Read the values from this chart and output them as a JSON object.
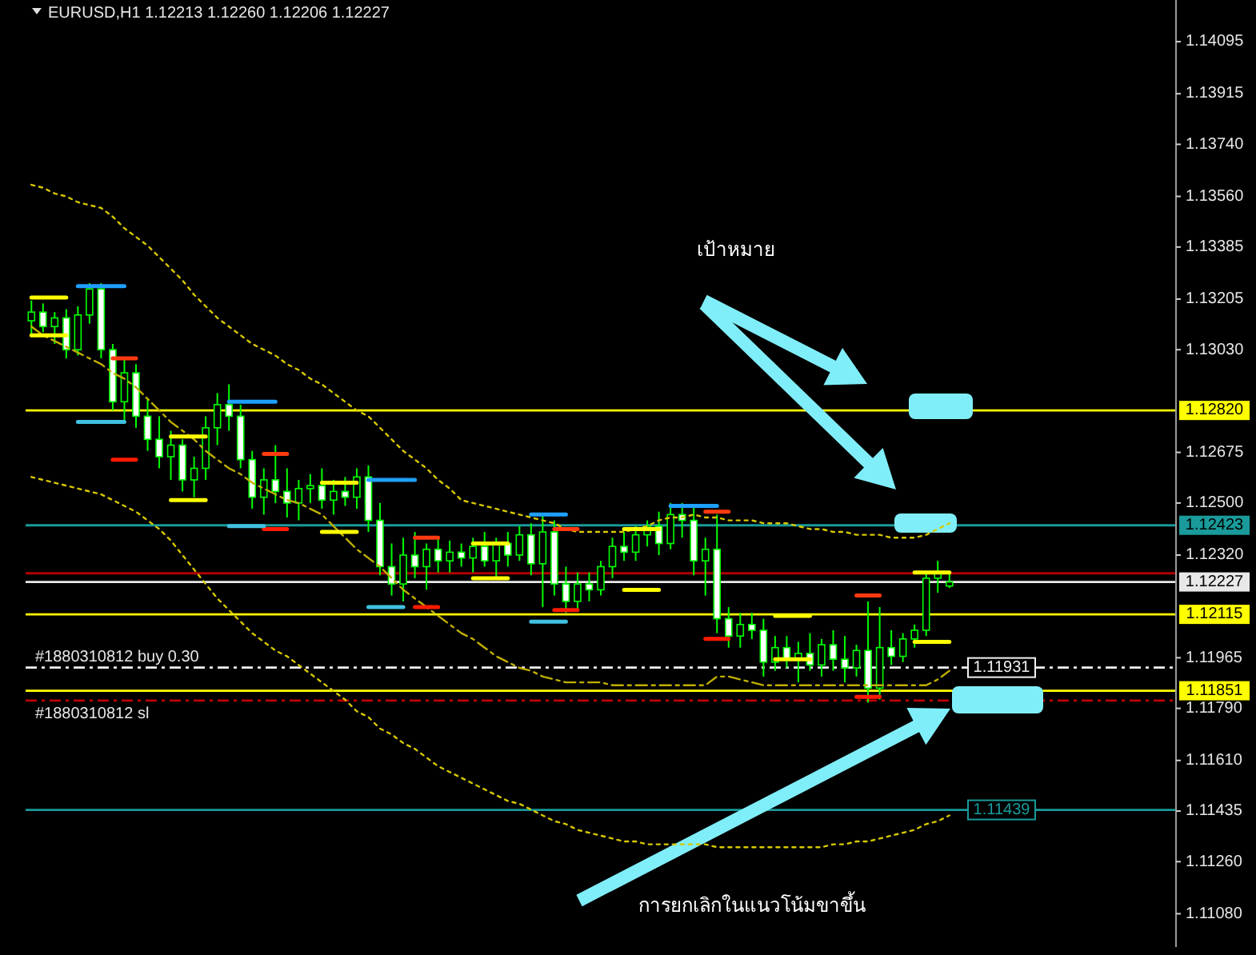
{
  "chart_data": {
    "type": "candlestick",
    "title": "EURUSD,H1  1.12213 1.12260 1.12206 1.12227",
    "categories": [
      null,
      null,
      null,
      null,
      null,
      null,
      null,
      null,
      null,
      null,
      null,
      null,
      null,
      null,
      null,
      null,
      null,
      null,
      null,
      null,
      null,
      null,
      null,
      null,
      null,
      null,
      null,
      null,
      null,
      null,
      null,
      null,
      null,
      null,
      null,
      null,
      null,
      null,
      null,
      null,
      null,
      null,
      null,
      null,
      null,
      null,
      null,
      null,
      null,
      null,
      null,
      null,
      null,
      null,
      null,
      null,
      null,
      null,
      null,
      null,
      null,
      null,
      null,
      null,
      null,
      null,
      null,
      null,
      null,
      null,
      null,
      null,
      null,
      null,
      null,
      null,
      null,
      null,
      null,
      null,
      null,
      null,
      null,
      null,
      null,
      null,
      null,
      null,
      null,
      null,
      null,
      null,
      null,
      null,
      null,
      null,
      null,
      null,
      null
    ],
    "ohlc": [
      [
        1.1313,
        1.132,
        1.1308,
        1.1316
      ],
      [
        1.1316,
        1.1319,
        1.1309,
        1.1311
      ],
      [
        1.1311,
        1.1316,
        1.1305,
        1.1314
      ],
      [
        1.1314,
        1.1317,
        1.13,
        1.1303
      ],
      [
        1.1303,
        1.1318,
        1.1301,
        1.1315
      ],
      [
        1.1315,
        1.1326,
        1.1312,
        1.1324
      ],
      [
        1.1324,
        1.1326,
        1.13,
        1.1303
      ],
      [
        1.1303,
        1.1305,
        1.1282,
        1.1285
      ],
      [
        1.1285,
        1.13,
        1.1278,
        1.1295
      ],
      [
        1.1295,
        1.1298,
        1.1276,
        1.128
      ],
      [
        1.128,
        1.1286,
        1.1268,
        1.1272
      ],
      [
        1.1272,
        1.128,
        1.1262,
        1.1266
      ],
      [
        1.1266,
        1.1275,
        1.1258,
        1.127
      ],
      [
        1.127,
        1.1272,
        1.1254,
        1.1258
      ],
      [
        1.1258,
        1.1266,
        1.1252,
        1.1262
      ],
      [
        1.1262,
        1.128,
        1.1258,
        1.1276
      ],
      [
        1.1276,
        1.1288,
        1.127,
        1.1284
      ],
      [
        1.1284,
        1.1291,
        1.1275,
        1.128
      ],
      [
        1.128,
        1.1284,
        1.1262,
        1.1265
      ],
      [
        1.1265,
        1.1268,
        1.1248,
        1.1252
      ],
      [
        1.1252,
        1.1262,
        1.1246,
        1.1258
      ],
      [
        1.1258,
        1.127,
        1.125,
        1.1254
      ],
      [
        1.1254,
        1.1262,
        1.1245,
        1.125
      ],
      [
        1.125,
        1.1258,
        1.1244,
        1.1255
      ],
      [
        1.1255,
        1.126,
        1.125,
        1.1256
      ],
      [
        1.1256,
        1.1262,
        1.1248,
        1.1251
      ],
      [
        1.1251,
        1.1258,
        1.1246,
        1.1254
      ],
      [
        1.1254,
        1.1259,
        1.1249,
        1.1252
      ],
      [
        1.1252,
        1.1262,
        1.1248,
        1.1259
      ],
      [
        1.1259,
        1.1263,
        1.124,
        1.1244
      ],
      [
        1.1244,
        1.125,
        1.1225,
        1.1228
      ],
      [
        1.1228,
        1.1236,
        1.1218,
        1.1222
      ],
      [
        1.1222,
        1.1238,
        1.1216,
        1.1232
      ],
      [
        1.1232,
        1.124,
        1.1224,
        1.1228
      ],
      [
        1.1228,
        1.1236,
        1.122,
        1.1234
      ],
      [
        1.1234,
        1.1238,
        1.1226,
        1.123
      ],
      [
        1.123,
        1.1237,
        1.1226,
        1.1233
      ],
      [
        1.1233,
        1.1236,
        1.1228,
        1.1231
      ],
      [
        1.1231,
        1.1238,
        1.1226,
        1.1235
      ],
      [
        1.1235,
        1.124,
        1.1228,
        1.123
      ],
      [
        1.123,
        1.1238,
        1.1224,
        1.1236
      ],
      [
        1.1236,
        1.124,
        1.1228,
        1.1232
      ],
      [
        1.1232,
        1.1242,
        1.123,
        1.1239
      ],
      [
        1.1239,
        1.1243,
        1.1225,
        1.1229
      ],
      [
        1.1229,
        1.1246,
        1.1214,
        1.124
      ],
      [
        1.124,
        1.1244,
        1.1218,
        1.1222
      ],
      [
        1.1222,
        1.1228,
        1.1212,
        1.1216
      ],
      [
        1.1216,
        1.1226,
        1.1213,
        1.1222
      ],
      [
        1.1222,
        1.1226,
        1.1216,
        1.122
      ],
      [
        1.122,
        1.123,
        1.1218,
        1.1228
      ],
      [
        1.1228,
        1.1238,
        1.1224,
        1.1235
      ],
      [
        1.1235,
        1.124,
        1.123,
        1.1233
      ],
      [
        1.1233,
        1.1242,
        1.123,
        1.1239
      ],
      [
        1.1239,
        1.1244,
        1.1235,
        1.1242
      ],
      [
        1.1242,
        1.1247,
        1.1232,
        1.1236
      ],
      [
        1.1236,
        1.125,
        1.1234,
        1.1246
      ],
      [
        1.1246,
        1.125,
        1.1238,
        1.1244
      ],
      [
        1.1244,
        1.1249,
        1.1225,
        1.123
      ],
      [
        1.123,
        1.1238,
        1.1218,
        1.1234
      ],
      [
        1.1234,
        1.1246,
        1.1205,
        1.121
      ],
      [
        1.121,
        1.1214,
        1.12,
        1.1204
      ],
      [
        1.1204,
        1.1212,
        1.12,
        1.1208
      ],
      [
        1.1208,
        1.1212,
        1.1203,
        1.1206
      ],
      [
        1.1206,
        1.121,
        1.119,
        1.1195
      ],
      [
        1.1195,
        1.1204,
        1.1192,
        1.12
      ],
      [
        1.12,
        1.1204,
        1.1193,
        1.1196
      ],
      [
        1.1196,
        1.1202,
        1.1188,
        1.1198
      ],
      [
        1.1198,
        1.1205,
        1.1192,
        1.1194
      ],
      [
        1.1194,
        1.1203,
        1.119,
        1.1201
      ],
      [
        1.1201,
        1.1206,
        1.1192,
        1.1196
      ],
      [
        1.1196,
        1.1204,
        1.1188,
        1.1193
      ],
      [
        1.1193,
        1.1201,
        1.119,
        1.1199
      ],
      [
        1.1199,
        1.1216,
        1.1181,
        1.1186
      ],
      [
        1.1186,
        1.1214,
        1.1182,
        1.12
      ],
      [
        1.12,
        1.1206,
        1.1194,
        1.1197
      ],
      [
        1.1197,
        1.1205,
        1.1195,
        1.1203
      ],
      [
        1.1203,
        1.1208,
        1.12,
        1.1206
      ],
      [
        1.1206,
        1.1226,
        1.1204,
        1.1224
      ],
      [
        1.1224,
        1.123,
        1.1219,
        1.1226
      ],
      [
        1.12213,
        1.1226,
        1.12206,
        1.12227
      ],
      null,
      null,
      null,
      null,
      null,
      null,
      null,
      null,
      null,
      null,
      null,
      null,
      null,
      null,
      null,
      null,
      null,
      null,
      null
    ],
    "series": [
      {
        "type": "line",
        "color": "#d8c800",
        "line_style": "dotted",
        "values": [
          1.136,
          1.1359,
          1.1357,
          1.1356,
          1.1354,
          1.1353,
          1.1352,
          1.1349,
          1.1345,
          1.1342,
          1.1339,
          1.1335,
          1.1331,
          1.1327,
          1.1322,
          1.1318,
          1.1314,
          1.1311,
          1.1308,
          1.1305,
          1.1303,
          1.1301,
          1.1298,
          1.1296,
          1.1293,
          1.1291,
          1.1288,
          1.1285,
          1.1282,
          1.128,
          1.1276,
          1.1272,
          1.1268,
          1.1265,
          1.1262,
          1.1258,
          1.1255,
          1.1251,
          1.125,
          1.1249,
          1.1248,
          1.1247,
          1.1246,
          1.1245,
          1.1244,
          1.1243,
          1.1241,
          1.124,
          1.124,
          1.124,
          1.124,
          1.124,
          1.1241,
          1.1242,
          1.1244,
          1.1245,
          1.1245,
          1.1246,
          1.1245,
          1.1245,
          1.1244,
          1.1244,
          1.1244,
          1.1243,
          1.1243,
          1.1243,
          1.1242,
          1.1241,
          1.1241,
          1.124,
          1.124,
          1.1239,
          1.1239,
          1.1239,
          1.1238,
          1.1238,
          1.1238,
          1.1239,
          1.1241,
          1.1243,
          null,
          null,
          null,
          null,
          null,
          null,
          null,
          null,
          null,
          null,
          null,
          null,
          null,
          null,
          null,
          null,
          null,
          null,
          null
        ]
      },
      {
        "type": "line",
        "color": "#c0b000",
        "line_style": "dashed",
        "values": [
          1.1311,
          1.1308,
          1.1306,
          1.1304,
          1.1302,
          1.13,
          1.1298,
          1.1295,
          1.1293,
          1.129,
          1.1286,
          1.1282,
          1.1278,
          1.1275,
          1.1272,
          1.1268,
          1.1265,
          1.1262,
          1.126,
          1.1257,
          1.1255,
          1.1253,
          1.1251,
          1.125,
          1.1248,
          1.1246,
          1.1242,
          1.1238,
          1.1234,
          1.1231,
          1.1228,
          1.1224,
          1.122,
          1.1217,
          1.1214,
          1.1211,
          1.1208,
          1.1205,
          1.1203,
          1.12,
          1.1197,
          1.1195,
          1.1193,
          1.1192,
          1.119,
          1.1189,
          1.1188,
          1.1188,
          1.1188,
          1.1188,
          1.1187,
          1.1187,
          1.1187,
          1.1187,
          1.1187,
          1.1187,
          1.1187,
          1.1187,
          1.1187,
          1.119,
          1.119,
          1.1189,
          1.1188,
          1.1187,
          1.1187,
          1.1187,
          1.1187,
          1.1187,
          1.1187,
          1.1187,
          1.1187,
          1.1187,
          1.1187,
          1.1187,
          1.1187,
          1.1187,
          1.1187,
          1.1187,
          1.1189,
          1.1192,
          null,
          null,
          null,
          null,
          null,
          null,
          null,
          null,
          null,
          null,
          null,
          null,
          null,
          null,
          null,
          null,
          null,
          null,
          null
        ]
      },
      {
        "type": "line",
        "color": "#d8c800",
        "line_style": "dotted",
        "values": [
          1.1259,
          1.1258,
          1.1257,
          1.1256,
          1.1255,
          1.1254,
          1.1253,
          1.1251,
          1.1249,
          1.1247,
          1.1244,
          1.1241,
          1.1237,
          1.1232,
          1.1227,
          1.1222,
          1.1217,
          1.1213,
          1.1209,
          1.1205,
          1.1202,
          1.1199,
          1.1197,
          1.1194,
          1.1191,
          1.1188,
          1.1185,
          1.1182,
          1.1178,
          1.1176,
          1.1172,
          1.117,
          1.1167,
          1.1165,
          1.1162,
          1.1159,
          1.1157,
          1.1155,
          1.1153,
          1.1151,
          1.1149,
          1.1147,
          1.1146,
          1.1144,
          1.1142,
          1.114,
          1.1139,
          1.1137,
          1.1136,
          1.1135,
          1.1134,
          1.1133,
          1.1133,
          1.1132,
          1.1132,
          1.1132,
          1.1132,
          1.1132,
          1.1132,
          1.1131,
          1.1131,
          1.1131,
          1.1131,
          1.1131,
          1.1131,
          1.1131,
          1.1131,
          1.1131,
          1.1131,
          1.1132,
          1.1132,
          1.1133,
          1.1133,
          1.1134,
          1.1135,
          1.1136,
          1.1137,
          1.1139,
          1.114,
          1.1142,
          null,
          null,
          null,
          null,
          null,
          null,
          null,
          null,
          null,
          null,
          null,
          null,
          null,
          null,
          null,
          null,
          null,
          null,
          null
        ]
      },
      {
        "type": "line",
        "color": "#ffff00",
        "line_style": "solid",
        "values": [
          1.1321,
          1.1321,
          1.1321,
          1.1321,
          null,
          null,
          null,
          null,
          null,
          null,
          null,
          null,
          1.1273,
          1.1273,
          1.1273,
          1.1273,
          null,
          null,
          null,
          null,
          null,
          null,
          null,
          null,
          null,
          1.1257,
          1.1257,
          1.1257,
          1.1257,
          null,
          null,
          null,
          null,
          null,
          null,
          null,
          null,
          null,
          1.1236,
          1.1236,
          1.1236,
          1.1236,
          null,
          null,
          null,
          null,
          null,
          null,
          null,
          null,
          null,
          1.1241,
          1.1241,
          1.1241,
          1.1241,
          null,
          null,
          null,
          null,
          null,
          null,
          null,
          null,
          null,
          1.1211,
          1.1211,
          1.1211,
          1.1211,
          null,
          null,
          null,
          null,
          null,
          null,
          null,
          null,
          1.1226,
          1.1226,
          1.1226,
          1.1226,
          null,
          null,
          null,
          null,
          null,
          null,
          null,
          null,
          null,
          null,
          null,
          null,
          null,
          null,
          null,
          null,
          null,
          null,
          null
        ]
      },
      {
        "type": "line",
        "color": "#ffff00",
        "line_style": "solid",
        "values": [
          1.1308,
          1.1308,
          1.1308,
          1.1308,
          null,
          null,
          null,
          null,
          null,
          null,
          null,
          null,
          1.1251,
          1.1251,
          1.1251,
          1.1251,
          null,
          null,
          null,
          null,
          null,
          null,
          null,
          null,
          null,
          1.124,
          1.124,
          1.124,
          1.124,
          null,
          null,
          null,
          null,
          null,
          null,
          null,
          null,
          null,
          1.1224,
          1.1224,
          1.1224,
          1.1224,
          null,
          null,
          null,
          null,
          null,
          null,
          null,
          null,
          null,
          1.122,
          1.122,
          1.122,
          1.122,
          null,
          null,
          null,
          null,
          null,
          null,
          null,
          null,
          null,
          1.1196,
          1.1196,
          1.1196,
          1.1196,
          null,
          null,
          null,
          null,
          null,
          null,
          null,
          null,
          1.1202,
          1.1202,
          1.1202,
          1.1202,
          null,
          null,
          null,
          null,
          null,
          null,
          null,
          null,
          null,
          null,
          null,
          null,
          null,
          null,
          null,
          null,
          null,
          null,
          null
        ]
      },
      {
        "type": "line",
        "color": "#ff3a10",
        "line_style": "solid",
        "values": [
          null,
          null,
          null,
          null,
          null,
          null,
          null,
          1.13,
          1.13,
          1.13,
          null,
          null,
          null,
          null,
          null,
          null,
          null,
          null,
          null,
          null,
          1.1267,
          1.1267,
          1.1267,
          null,
          null,
          null,
          null,
          null,
          null,
          null,
          null,
          null,
          null,
          1.1238,
          1.1238,
          1.1238,
          null,
          null,
          null,
          null,
          null,
          null,
          null,
          null,
          null,
          1.1241,
          1.1241,
          1.1241,
          null,
          null,
          null,
          null,
          null,
          null,
          null,
          null,
          null,
          null,
          1.1247,
          1.1247,
          1.1247,
          null,
          null,
          null,
          null,
          null,
          null,
          null,
          null,
          null,
          null,
          1.1218,
          1.1218,
          1.1218,
          null,
          null,
          null,
          null,
          null,
          null,
          null,
          null,
          null,
          null,
          null,
          null,
          null,
          null,
          null,
          null,
          null,
          null,
          null,
          null,
          null,
          null,
          null,
          null,
          null
        ]
      },
      {
        "type": "line",
        "color": "#ff1a00",
        "line_style": "solid",
        "values": [
          null,
          null,
          null,
          null,
          null,
          null,
          null,
          1.1265,
          1.1265,
          1.1265,
          null,
          null,
          null,
          null,
          null,
          null,
          null,
          null,
          null,
          null,
          1.1241,
          1.1241,
          1.1241,
          null,
          null,
          null,
          null,
          null,
          null,
          null,
          null,
          null,
          null,
          1.1214,
          1.1214,
          1.1214,
          null,
          null,
          null,
          null,
          null,
          null,
          null,
          null,
          null,
          1.1213,
          1.1213,
          1.1213,
          null,
          null,
          null,
          null,
          null,
          null,
          null,
          null,
          null,
          null,
          1.1203,
          1.1203,
          1.1203,
          null,
          null,
          null,
          null,
          null,
          null,
          null,
          null,
          null,
          null,
          1.1183,
          1.1183,
          1.1183,
          null,
          null,
          null,
          null,
          null,
          null,
          null,
          null,
          null,
          null,
          null,
          null,
          null,
          null,
          null,
          null,
          null,
          null,
          null,
          null,
          null,
          null,
          null,
          null,
          null
        ]
      },
      {
        "type": "line",
        "color": "#1ea0ff",
        "line_style": "solid",
        "values": [
          null,
          null,
          null,
          null,
          1.1325,
          1.1325,
          1.1325,
          1.1325,
          1.1325,
          null,
          null,
          null,
          null,
          null,
          null,
          null,
          null,
          1.1285,
          1.1285,
          1.1285,
          1.1285,
          1.1285,
          null,
          null,
          null,
          null,
          null,
          null,
          null,
          1.1258,
          1.1258,
          1.1258,
          1.1258,
          1.1258,
          null,
          null,
          null,
          null,
          null,
          null,
          null,
          null,
          null,
          1.1246,
          1.1246,
          1.1246,
          1.1246,
          null,
          null,
          null,
          null,
          null,
          null,
          null,
          null,
          1.1249,
          1.1249,
          1.1249,
          1.1249,
          1.1249,
          null,
          null,
          null,
          null,
          null,
          null,
          null,
          null,
          null,
          null,
          null,
          null,
          null,
          null,
          null,
          null,
          null,
          null,
          null,
          null,
          null,
          null,
          null,
          null,
          null,
          null,
          null,
          null,
          null,
          null,
          null,
          null,
          null,
          null,
          null,
          null,
          null,
          null,
          null
        ]
      },
      {
        "type": "line",
        "color": "#40c0e0",
        "line_style": "solid",
        "values": [
          null,
          null,
          null,
          null,
          1.1278,
          1.1278,
          1.1278,
          1.1278,
          1.1278,
          null,
          null,
          null,
          null,
          null,
          null,
          null,
          null,
          1.1242,
          1.1242,
          1.1242,
          1.1242,
          null,
          null,
          null,
          null,
          null,
          null,
          null,
          null,
          1.1214,
          1.1214,
          1.1214,
          1.1214,
          null,
          null,
          null,
          null,
          null,
          null,
          null,
          null,
          null,
          null,
          1.1209,
          1.1209,
          1.1209,
          1.1209,
          null,
          null,
          null,
          null,
          null,
          null,
          null,
          null,
          null,
          null,
          null,
          null,
          null,
          null,
          null,
          null,
          null,
          null,
          null,
          null,
          null,
          null,
          null,
          null,
          null,
          null,
          null,
          null,
          null,
          null,
          null,
          null,
          null,
          null,
          null,
          null,
          null,
          null,
          null,
          null,
          null,
          null,
          null,
          null,
          null,
          null,
          null,
          null,
          null,
          null,
          null,
          null
        ]
      }
    ],
    "ylim": [
      1.10965,
      1.14239
    ],
    "yticks": [
      1.14095,
      1.13915,
      {
        "value": 1.1374,
        "label": "1.13740"
      },
      {
        "value": 1.1356,
        "label": "1.13560"
      },
      1.13385,
      1.13205,
      {
        "value": 1.1303,
        "label": "1.13030"
      },
      1.12675,
      {
        "value": 1.125,
        "label": "1.12500"
      },
      {
        "value": 1.1232,
        "label": "1.12320"
      },
      1.11965,
      {
        "value": 1.1179,
        "label": "1.11790"
      },
      {
        "value": 1.1161,
        "label": "1.11610"
      },
      1.11435,
      {
        "value": 1.1126,
        "label": "1.11260"
      },
      {
        "value": 1.1108,
        "label": "1.11080"
      }
    ],
    "tick_labels": "y",
    "ref_lines": [
      {
        "axis": "y",
        "value": 1.1282,
        "label": "1.12820",
        "color": "#ffff00"
      },
      {
        "axis": "y",
        "value": 1.12423,
        "label": "1.12423",
        "color": "#1a9a9a"
      },
      {
        "axis": "y",
        "value": 1.12257,
        "label": null,
        "color": "#b00000"
      },
      {
        "axis": "y",
        "value": 1.12227,
        "label": "1.12227",
        "color": "#e8e8e8"
      },
      {
        "axis": "y",
        "value": 1.12115,
        "label": "1.12115",
        "color": "#ffff00"
      },
      {
        "axis": "y",
        "value": 1.11931,
        "label": "1.11931",
        "color": "#f0f0f0",
        "line_style": "dashed"
      },
      {
        "axis": "y",
        "value": 1.11851,
        "label": "1.11851",
        "color": "#ffff00"
      },
      {
        "axis": "y",
        "value": 1.11817,
        "label": null,
        "color": "#c00000",
        "line_style": "dashed"
      },
      {
        "axis": "y",
        "value": 1.11439,
        "label": "1.11439",
        "color": "#1a9a9a"
      }
    ],
    "annotations": [
      "เป้าหมาย",
      "การยกเลิกในแนวโน้มขาขึ้น",
      {
        "text": "#1880310812 buy 0.30",
        "y": 1.11931
      },
      {
        "text": "#1880310812 sl",
        "y": 1.11817
      }
    ]
  }
}
